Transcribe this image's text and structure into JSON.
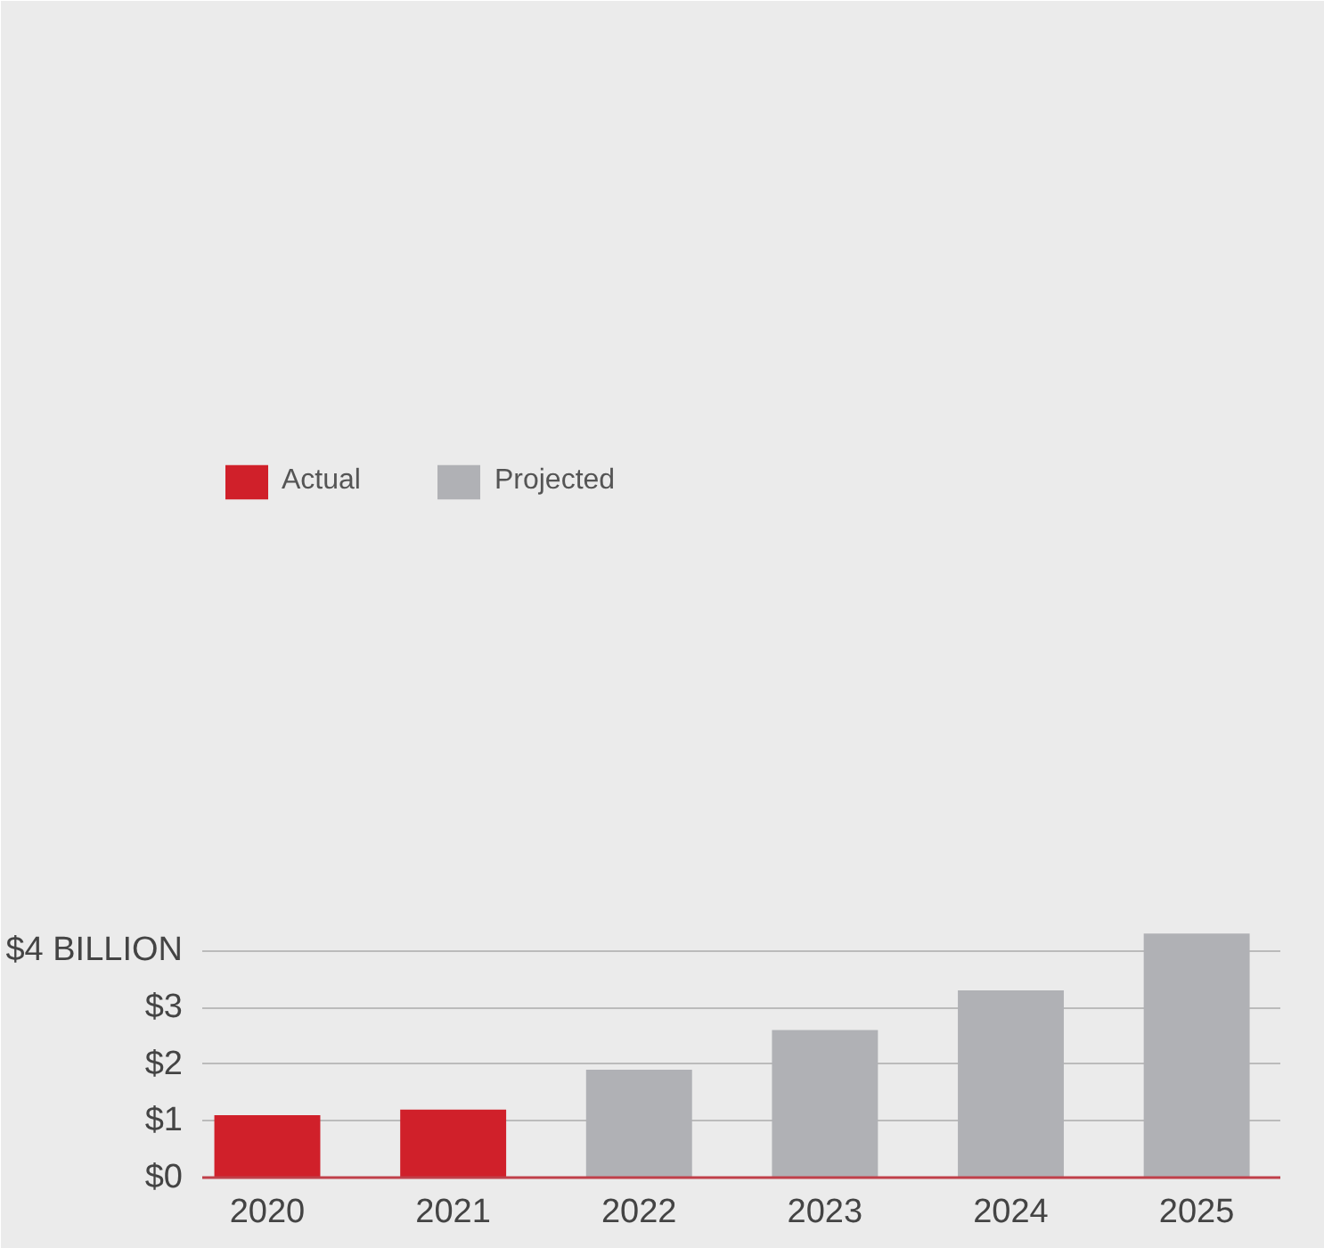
{
  "chart_data": {
    "type": "bar",
    "categories": [
      "2020",
      "2021",
      "2022",
      "2023",
      "2024",
      "2025"
    ],
    "series": [
      {
        "name": "Actual",
        "color": "#d0202a",
        "values": [
          1.1,
          1.2,
          null,
          null,
          null,
          null
        ]
      },
      {
        "name": "Projected",
        "color": "#b0b1b5",
        "values": [
          null,
          null,
          1.9,
          2.6,
          3.3,
          4.3
        ]
      }
    ],
    "ylim": [
      0,
      4.4
    ],
    "yticks": [
      {
        "value": 0,
        "label": "$0"
      },
      {
        "value": 1,
        "label": "$1"
      },
      {
        "value": 2,
        "label": "$2"
      },
      {
        "value": 3,
        "label": "$3"
      },
      {
        "value": 4,
        "label": "$4 BILLION"
      }
    ],
    "grid": "y",
    "legend": "top left"
  }
}
